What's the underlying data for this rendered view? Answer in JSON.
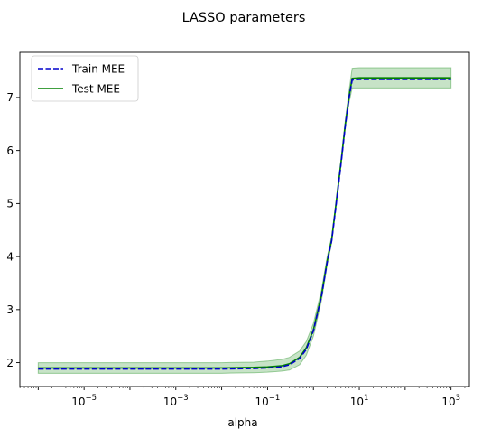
{
  "chart_data": {
    "type": "line",
    "title": "LASSO parameters",
    "xlabel": "alpha",
    "ylabel": "",
    "xscale": "log",
    "xlim": [
      3.98e-07,
      2512
    ],
    "ylim": [
      1.55,
      7.85
    ],
    "x_ticks": [
      {
        "value": 1e-05,
        "base": "10",
        "exp": "−5"
      },
      {
        "value": 0.001,
        "base": "10",
        "exp": "−3"
      },
      {
        "value": 0.1,
        "base": "10",
        "exp": "−1"
      },
      {
        "value": 10,
        "base": "10",
        "exp": "1"
      },
      {
        "value": 1000,
        "base": "10",
        "exp": "3"
      }
    ],
    "y_ticks": [
      {
        "value": 2,
        "label": "2"
      },
      {
        "value": 3,
        "label": "3"
      },
      {
        "value": 4,
        "label": "4"
      },
      {
        "value": 5,
        "label": "5"
      },
      {
        "value": 6,
        "label": "6"
      },
      {
        "value": 7,
        "label": "7"
      }
    ],
    "grid": false,
    "legend_position": "top-left",
    "x": [
      1e-06,
      0.0001,
      0.01,
      0.05,
      0.1,
      0.2,
      0.3,
      0.5,
      0.7,
      1.0,
      1.5,
      2.0,
      2.5,
      3.0,
      4.0,
      5.0,
      6.0,
      7.0,
      10,
      100,
      1000
    ],
    "series": [
      {
        "name": "Train MEE",
        "style": "dashed",
        "color": "#0000cc",
        "values": [
          1.88,
          1.88,
          1.88,
          1.89,
          1.9,
          1.92,
          1.96,
          2.08,
          2.25,
          2.6,
          3.25,
          3.9,
          4.3,
          4.85,
          5.75,
          6.5,
          7.0,
          7.33,
          7.34,
          7.34,
          7.34
        ]
      },
      {
        "name": "Test MEE",
        "style": "solid",
        "color": "#008000",
        "values": [
          1.9,
          1.9,
          1.9,
          1.91,
          1.92,
          1.94,
          1.98,
          2.1,
          2.28,
          2.62,
          3.27,
          3.92,
          4.32,
          4.88,
          5.78,
          6.52,
          7.02,
          7.36,
          7.37,
          7.37,
          7.37
        ],
        "band_lower": [
          1.8,
          1.8,
          1.8,
          1.81,
          1.82,
          1.84,
          1.86,
          1.96,
          2.14,
          2.5,
          3.17,
          3.84,
          4.26,
          4.82,
          5.72,
          6.44,
          6.9,
          7.18,
          7.18,
          7.18,
          7.18
        ],
        "band_upper": [
          2.0,
          2.0,
          2.0,
          2.01,
          2.03,
          2.06,
          2.1,
          2.22,
          2.4,
          2.74,
          3.37,
          4.0,
          4.38,
          4.94,
          5.84,
          6.6,
          7.14,
          7.55,
          7.56,
          7.56,
          7.56
        ],
        "band_color": "#008000"
      }
    ]
  }
}
